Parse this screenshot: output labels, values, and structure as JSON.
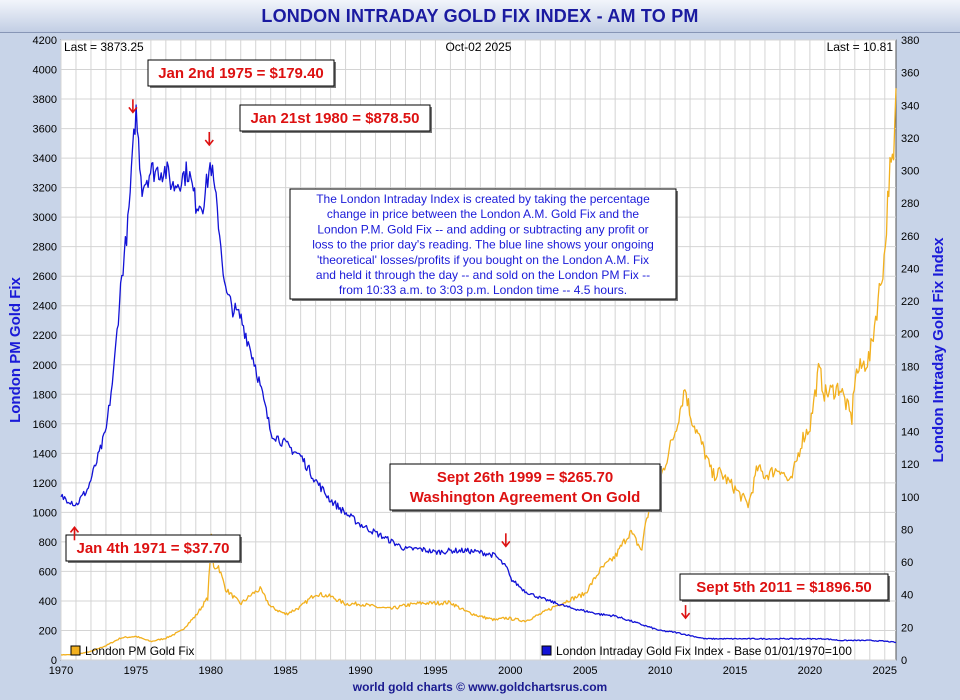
{
  "chart_data": {
    "type": "line",
    "title": "LONDON INTRADAY GOLD FIX INDEX - AM TO PM",
    "header": {
      "last_left": "Last = 3873.25",
      "date": "Oct-02  2025",
      "last_right": "Last = 10.81"
    },
    "ylabel_left": "London PM Gold Fix",
    "ylabel_right": "London Intraday Gold Fix Index",
    "y_left": {
      "min": 0,
      "max": 4200,
      "step": 200
    },
    "y_right": {
      "min": 0,
      "max": 380,
      "step": 20
    },
    "x": {
      "min": 1970,
      "max": 2025.75,
      "ticks": [
        1970,
        1975,
        1980,
        1985,
        1990,
        1995,
        2000,
        2005,
        2010,
        2015,
        2020,
        2025
      ]
    },
    "colors": {
      "gold": "#f2b01e",
      "index": "#1212d6",
      "annotation": "#dd1111",
      "grid": "#d4d4d4"
    },
    "series": [
      {
        "name": "London PM Gold Fix",
        "axis": "left",
        "points": [
          [
            1970,
            35
          ],
          [
            1971,
            37.7
          ],
          [
            1972,
            58
          ],
          [
            1973,
            97
          ],
          [
            1974,
            150
          ],
          [
            1975,
            160
          ],
          [
            1976,
            125
          ],
          [
            1977,
            148
          ],
          [
            1978,
            195
          ],
          [
            1979,
            300
          ],
          [
            1979.8,
            420
          ],
          [
            1980.05,
            850
          ],
          [
            1980.15,
            620
          ],
          [
            1980.5,
            640
          ],
          [
            1981,
            480
          ],
          [
            1982,
            380
          ],
          [
            1982.8,
            450
          ],
          [
            1983.3,
            480
          ],
          [
            1984,
            360
          ],
          [
            1985,
            310
          ],
          [
            1986,
            360
          ],
          [
            1987,
            450
          ],
          [
            1988,
            430
          ],
          [
            1989,
            380
          ],
          [
            1990,
            380
          ],
          [
            1991,
            360
          ],
          [
            1992,
            345
          ],
          [
            1993,
            370
          ],
          [
            1994,
            385
          ],
          [
            1995,
            385
          ],
          [
            1996,
            390
          ],
          [
            1997,
            330
          ],
          [
            1998,
            295
          ],
          [
            1999,
            270
          ],
          [
            1999.7,
            285
          ],
          [
            2000,
            280
          ],
          [
            2001,
            265
          ],
          [
            2002,
            310
          ],
          [
            2003,
            365
          ],
          [
            2004,
            410
          ],
          [
            2005,
            450
          ],
          [
            2006,
            610
          ],
          [
            2007,
            700
          ],
          [
            2008,
            870
          ],
          [
            2008.8,
            740
          ],
          [
            2009,
            930
          ],
          [
            2010,
            1220
          ],
          [
            2011,
            1550
          ],
          [
            2011.67,
            1850
          ],
          [
            2012,
            1670
          ],
          [
            2013,
            1400
          ],
          [
            2013.5,
            1250
          ],
          [
            2014,
            1270
          ],
          [
            2015,
            1160
          ],
          [
            2015.9,
            1050
          ],
          [
            2016.5,
            1300
          ],
          [
            2017,
            1250
          ],
          [
            2018,
            1300
          ],
          [
            2018.7,
            1190
          ],
          [
            2019.5,
            1500
          ],
          [
            2020,
            1580
          ],
          [
            2020.6,
            1970
          ],
          [
            2021,
            1800
          ],
          [
            2022,
            1850
          ],
          [
            2022.8,
            1630
          ],
          [
            2023,
            1930
          ],
          [
            2024,
            2050
          ],
          [
            2024.5,
            2400
          ],
          [
            2025,
            2750
          ],
          [
            2025.3,
            3300
          ],
          [
            2025.6,
            3350
          ],
          [
            2025.75,
            3873.25
          ]
        ],
        "labels_every": 0
      },
      {
        "name": "London Intraday Gold Fix Index - Base 01/01/1970=100",
        "axis": "right",
        "points": [
          [
            1970,
            100
          ],
          [
            1970.6,
            98
          ],
          [
            1971,
            95
          ],
          [
            1971.8,
            105
          ],
          [
            1972.5,
            125
          ],
          [
            1973,
            140
          ],
          [
            1973.5,
            175
          ],
          [
            1974,
            230
          ],
          [
            1974.5,
            270
          ],
          [
            1975,
            338
          ],
          [
            1975.4,
            290
          ],
          [
            1976,
            300
          ],
          [
            1977,
            300
          ],
          [
            1977.5,
            290
          ],
          [
            1978,
            295
          ],
          [
            1978.5,
            300
          ],
          [
            1979,
            280
          ],
          [
            1979.5,
            280
          ],
          [
            1980,
            305
          ],
          [
            1980.5,
            270
          ],
          [
            1981,
            225
          ],
          [
            1981.5,
            215
          ],
          [
            1982,
            210
          ],
          [
            1982.5,
            195
          ],
          [
            1983,
            180
          ],
          [
            1983.5,
            160
          ],
          [
            1984,
            140
          ],
          [
            1985,
            132
          ],
          [
            1986,
            125
          ],
          [
            1987,
            110
          ],
          [
            1988,
            98
          ],
          [
            1989,
            90
          ],
          [
            1990,
            83
          ],
          [
            1991,
            78
          ],
          [
            1992,
            73
          ],
          [
            1993,
            68
          ],
          [
            1994,
            68
          ],
          [
            1995,
            66
          ],
          [
            1996,
            67
          ],
          [
            1997,
            67
          ],
          [
            1998,
            66
          ],
          [
            1999,
            64
          ],
          [
            1999.8,
            56
          ],
          [
            2000,
            50
          ],
          [
            2001,
            42
          ],
          [
            2002,
            38
          ],
          [
            2003,
            35
          ],
          [
            2004,
            32
          ],
          [
            2005,
            30
          ],
          [
            2006,
            28
          ],
          [
            2007,
            27
          ],
          [
            2008,
            24
          ],
          [
            2009,
            21
          ],
          [
            2010,
            18
          ],
          [
            2011,
            17
          ],
          [
            2012,
            15
          ],
          [
            2013,
            13
          ],
          [
            2014,
            13
          ],
          [
            2015,
            13
          ],
          [
            2016,
            13
          ],
          [
            2017,
            13
          ],
          [
            2018,
            13
          ],
          [
            2019,
            13
          ],
          [
            2020,
            13
          ],
          [
            2021,
            13
          ],
          [
            2022,
            12
          ],
          [
            2023,
            12
          ],
          [
            2024,
            12
          ],
          [
            2025,
            11.5
          ],
          [
            2025.75,
            10.81
          ]
        ]
      }
    ],
    "annotations": [
      {
        "text": "Jan 2nd 1975 = $179.40",
        "arrow_x": 1974.8,
        "arrow_y_index": 332,
        "placement": "above"
      },
      {
        "text": "Jan 21st 1980 = $878.50",
        "arrow_x": 1979.9,
        "arrow_y_index": 312,
        "placement": "above-right"
      },
      {
        "text": "Jan 4th 1971 = $37.70",
        "arrow_x": 1970.9,
        "arrow_y_index": 85,
        "placement": "below"
      },
      {
        "text": "Sept 26th 1999 = $265.70",
        "text2": "Washington Agreement On Gold",
        "arrow_x": 1999.7,
        "arrow_y_index": 66,
        "placement": "above"
      },
      {
        "text": "Sept 5th 2011 = $1896.50",
        "arrow_x": 2011.7,
        "arrow_y_index": 22,
        "placement": "above-right"
      }
    ],
    "note": [
      "The London Intraday Index is created by taking the percentage",
      "change in price between the London A.M. Gold Fix and the",
      "London P.M. Gold Fix -- and adding or subtracting any profit or",
      "loss to the prior day's reading. The blue line shows your ongoing",
      "'theoretical' losses/profits if you bought on the London A.M. Fix",
      "and held it through the day -- and sold on the London PM Fix --",
      "from 10:33 a.m. to 3:03 p.m. London time -- 4.5 hours."
    ],
    "legend": [
      {
        "label": "London PM Gold Fix",
        "color": "#f2b01e",
        "position": "bottom-left"
      },
      {
        "label": "London Intraday Gold Fix Index - Base 01/01/1970=100",
        "color": "#1212d6",
        "position": "bottom-right"
      }
    ]
  },
  "footer": "world gold charts © www.goldchartsrus.com"
}
